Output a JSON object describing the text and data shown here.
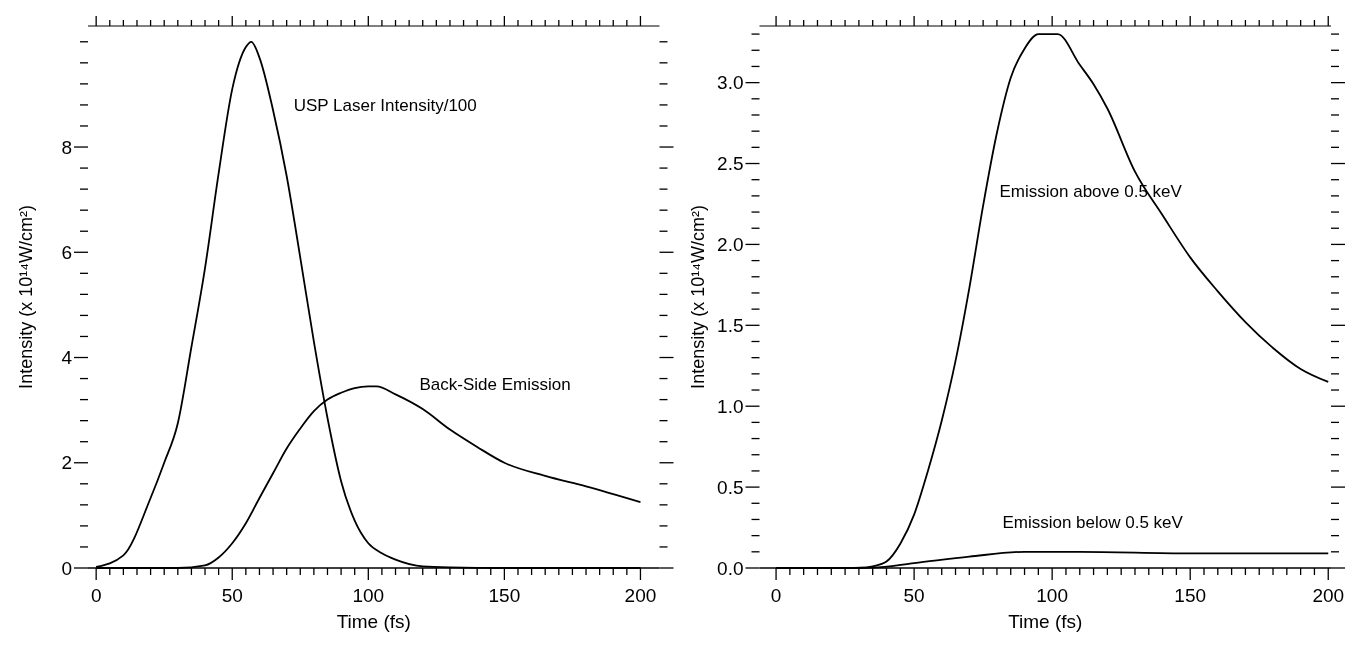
{
  "chart_data": [
    {
      "type": "line",
      "xlabel": "Time (fs)",
      "ylabel": "Intensity (x 10¹⁴W/cm²)",
      "xlim": [
        -3,
        207
      ],
      "ylim": [
        0,
        10.3
      ],
      "xticks": [
        0,
        {
          "value": 5,
          "label": null
        },
        {
          "value": 10,
          "label": null
        },
        {
          "value": 15,
          "label": null
        },
        {
          "value": 20,
          "label": null
        },
        {
          "value": 25,
          "label": null
        },
        {
          "value": 30,
          "label": null
        },
        {
          "value": 35,
          "label": null
        },
        {
          "value": 40,
          "label": null
        },
        {
          "value": 45,
          "label": null
        },
        50,
        {
          "value": 55,
          "label": null
        },
        {
          "value": 60,
          "label": null
        },
        {
          "value": 65,
          "label": null
        },
        {
          "value": 70,
          "label": null
        },
        {
          "value": 75,
          "label": null
        },
        {
          "value": 80,
          "label": null
        },
        {
          "value": 85,
          "label": null
        },
        {
          "value": 90,
          "label": null
        },
        {
          "value": 95,
          "label": null
        },
        100,
        {
          "value": 105,
          "label": null
        },
        {
          "value": 110,
          "label": null
        },
        {
          "value": 115,
          "label": null
        },
        {
          "value": 120,
          "label": null
        },
        {
          "value": 125,
          "label": null
        },
        {
          "value": 130,
          "label": null
        },
        {
          "value": 135,
          "label": null
        },
        {
          "value": 140,
          "label": null
        },
        {
          "value": 145,
          "label": null
        },
        150,
        {
          "value": 155,
          "label": null
        },
        {
          "value": 160,
          "label": null
        },
        {
          "value": 165,
          "label": null
        },
        {
          "value": 170,
          "label": null
        },
        {
          "value": 175,
          "label": null
        },
        {
          "value": 180,
          "label": null
        },
        {
          "value": 185,
          "label": null
        },
        {
          "value": 190,
          "label": null
        },
        {
          "value": 195,
          "label": null
        },
        200
      ],
      "yticks": [
        0,
        {
          "value": 0.4,
          "label": null
        },
        {
          "value": 0.8,
          "label": null
        },
        {
          "value": 1.2,
          "label": null
        },
        {
          "value": 1.6,
          "label": null
        },
        2,
        {
          "value": 2.4,
          "label": null
        },
        {
          "value": 2.8,
          "label": null
        },
        {
          "value": 3.2,
          "label": null
        },
        {
          "value": 3.6,
          "label": null
        },
        4,
        {
          "value": 4.4,
          "label": null
        },
        {
          "value": 4.8,
          "label": null
        },
        {
          "value": 5.2,
          "label": null
        },
        {
          "value": 5.6,
          "label": null
        },
        6,
        {
          "value": 6.4,
          "label": null
        },
        {
          "value": 6.8,
          "label": null
        },
        {
          "value": 7.2,
          "label": null
        },
        {
          "value": 7.6,
          "label": null
        },
        8,
        {
          "value": 8.4,
          "label": null
        },
        {
          "value": 8.8,
          "label": null
        },
        {
          "value": 9.2,
          "label": null
        },
        {
          "value": 9.6,
          "label": null
        },
        {
          "value": 10,
          "label": null
        }
      ],
      "line_style": "solid",
      "marker": "none",
      "grid": false,
      "series": [
        {
          "color": "#000000",
          "x": [
            0,
            10,
            20,
            25,
            30,
            35,
            40,
            45,
            50,
            55,
            57,
            60,
            65,
            70,
            75,
            80,
            85,
            90,
            95,
            100,
            105,
            110,
            120,
            130,
            150,
            200
          ],
          "values": [
            0.02,
            0.24,
            1.33,
            2.0,
            2.75,
            4.2,
            5.7,
            7.5,
            9.1,
            9.9,
            10,
            9.7,
            8.7,
            7.45,
            5.9,
            4.3,
            2.85,
            1.65,
            0.9,
            0.47,
            0.28,
            0.16,
            0.03,
            0.01,
            0,
            0
          ]
        },
        {
          "color": "#000000",
          "x": [
            0,
            30,
            40,
            45,
            50,
            55,
            60,
            65,
            70,
            75,
            80,
            85,
            90,
            95,
            100,
            103,
            110,
            120,
            130,
            140,
            150,
            165,
            180,
            200
          ],
          "values": [
            0,
            0,
            0.05,
            0.2,
            0.47,
            0.85,
            1.33,
            1.8,
            2.27,
            2.65,
            2.98,
            3.2,
            3.33,
            3.42,
            3.45,
            3.45,
            3.3,
            3.02,
            2.63,
            2.3,
            2.0,
            1.75,
            1.55,
            1.25
          ]
        }
      ],
      "annotations": [
        "USP Laser Intensity/100",
        "Back-Side Emission"
      ]
    },
    {
      "type": "line",
      "xlabel": "Time (fs)",
      "ylabel": "Intensity (x 10¹⁴W/cm²)",
      "xlim": [
        -6,
        201
      ],
      "ylim": [
        0,
        3.35
      ],
      "xticks": [
        0,
        {
          "value": 5,
          "label": null
        },
        {
          "value": 10,
          "label": null
        },
        {
          "value": 15,
          "label": null
        },
        {
          "value": 20,
          "label": null
        },
        {
          "value": 25,
          "label": null
        },
        {
          "value": 30,
          "label": null
        },
        {
          "value": 35,
          "label": null
        },
        {
          "value": 40,
          "label": null
        },
        {
          "value": 45,
          "label": null
        },
        50,
        {
          "value": 55,
          "label": null
        },
        {
          "value": 60,
          "label": null
        },
        {
          "value": 65,
          "label": null
        },
        {
          "value": 70,
          "label": null
        },
        {
          "value": 75,
          "label": null
        },
        {
          "value": 80,
          "label": null
        },
        {
          "value": 85,
          "label": null
        },
        {
          "value": 90,
          "label": null
        },
        {
          "value": 95,
          "label": null
        },
        100,
        {
          "value": 105,
          "label": null
        },
        {
          "value": 110,
          "label": null
        },
        {
          "value": 115,
          "label": null
        },
        {
          "value": 120,
          "label": null
        },
        {
          "value": 125,
          "label": null
        },
        {
          "value": 130,
          "label": null
        },
        {
          "value": 135,
          "label": null
        },
        {
          "value": 140,
          "label": null
        },
        {
          "value": 145,
          "label": null
        },
        150,
        {
          "value": 155,
          "label": null
        },
        {
          "value": 160,
          "label": null
        },
        {
          "value": 165,
          "label": null
        },
        {
          "value": 170,
          "label": null
        },
        {
          "value": 175,
          "label": null
        },
        {
          "value": 180,
          "label": null
        },
        {
          "value": 185,
          "label": null
        },
        {
          "value": 190,
          "label": null
        },
        {
          "value": 195,
          "label": null
        },
        200
      ],
      "yticks": [
        {
          "value": 0,
          "label": "0.0"
        },
        {
          "value": 0.1,
          "label": null
        },
        {
          "value": 0.2,
          "label": null
        },
        {
          "value": 0.3,
          "label": null
        },
        {
          "value": 0.4,
          "label": null
        },
        0.5,
        {
          "value": 0.6,
          "label": null
        },
        {
          "value": 0.7,
          "label": null
        },
        {
          "value": 0.8,
          "label": null
        },
        {
          "value": 0.9,
          "label": null
        },
        {
          "value": 1,
          "label": "1.0"
        },
        {
          "value": 1.1,
          "label": null
        },
        {
          "value": 1.2,
          "label": null
        },
        {
          "value": 1.3,
          "label": null
        },
        {
          "value": 1.4,
          "label": null
        },
        1.5,
        {
          "value": 1.6,
          "label": null
        },
        {
          "value": 1.7,
          "label": null
        },
        {
          "value": 1.8,
          "label": null
        },
        {
          "value": 1.9,
          "label": null
        },
        {
          "value": 2,
          "label": "2.0"
        },
        {
          "value": 2.1,
          "label": null
        },
        {
          "value": 2.2,
          "label": null
        },
        {
          "value": 2.3,
          "label": null
        },
        {
          "value": 2.4,
          "label": null
        },
        2.5,
        {
          "value": 2.6,
          "label": null
        },
        {
          "value": 2.7,
          "label": null
        },
        {
          "value": 2.8,
          "label": null
        },
        {
          "value": 2.9,
          "label": null
        },
        {
          "value": 3,
          "label": "3.0"
        },
        {
          "value": 3.1,
          "label": null
        },
        {
          "value": 3.2,
          "label": null
        },
        {
          "value": 3.3,
          "label": null
        }
      ],
      "line_style": "solid",
      "marker": "none",
      "grid": false,
      "series": [
        {
          "color": "#000000",
          "x": [
            0,
            30,
            35,
            40,
            45,
            50,
            55,
            60,
            65,
            70,
            75,
            80,
            85,
            90,
            95,
            102,
            110,
            115,
            120,
            130,
            140,
            150,
            160,
            170,
            180,
            190,
            200
          ],
          "values": [
            0,
            0,
            0.01,
            0.04,
            0.15,
            0.33,
            0.6,
            0.91,
            1.28,
            1.73,
            2.24,
            2.69,
            3.03,
            3.21,
            3.3,
            3.3,
            3.11,
            2.99,
            2.84,
            2.45,
            2.18,
            1.92,
            1.71,
            1.52,
            1.36,
            1.23,
            1.15
          ]
        },
        {
          "color": "#000000",
          "x": [
            0,
            35,
            50,
            70,
            90,
            110,
            150,
            200
          ],
          "values": [
            0,
            0.002,
            0.03,
            0.07,
            0.1,
            0.1,
            0.09,
            0.09
          ]
        }
      ],
      "annotations": [
        "Emission above 0.5 keV",
        "Emission below 0.5 keV"
      ]
    }
  ]
}
